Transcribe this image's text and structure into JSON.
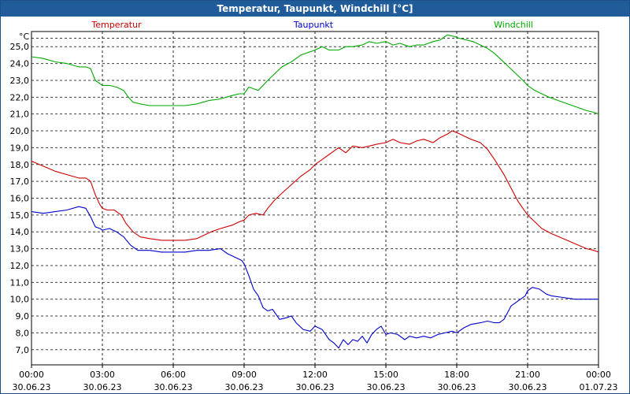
{
  "window": {
    "title": "Temperatur, Taupunkt, Windchill [°C]"
  },
  "chart_data": {
    "type": "line",
    "title": "Temperatur, Taupunkt, Windchill [°C]",
    "ylabel": "°C",
    "ylim": [
      6.1,
      25.9
    ],
    "yticks": [
      "7,0",
      "8,0",
      "9,0",
      "10,0",
      "11,0",
      "12,0",
      "13,0",
      "14,0",
      "15,0",
      "16,0",
      "17,0",
      "18,0",
      "19,0",
      "20,0",
      "21,0",
      "22,0",
      "23,0",
      "24,0",
      "25,0"
    ],
    "xlim": [
      0,
      24
    ],
    "xticks": [
      {
        "hour": 0,
        "time": "00:00",
        "date": "30.06.23"
      },
      {
        "hour": 3,
        "time": "03:00",
        "date": "30.06.23"
      },
      {
        "hour": 6,
        "time": "06:00",
        "date": "30.06.23"
      },
      {
        "hour": 9,
        "time": "09:00",
        "date": "30.06.23"
      },
      {
        "hour": 12,
        "time": "12:00",
        "date": "30.06.23"
      },
      {
        "hour": 15,
        "time": "15:00",
        "date": "30.06.23"
      },
      {
        "hour": 18,
        "time": "18:00",
        "date": "30.06.23"
      },
      {
        "hour": 21,
        "time": "21:00",
        "date": "30.06.23"
      },
      {
        "hour": 24,
        "time": "00:00",
        "date": "01.07.23"
      }
    ],
    "grid": true,
    "series": [
      {
        "name": "Temperatur",
        "color": "#cc0000",
        "x": [
          0,
          0.5,
          1,
          1.5,
          2,
          2.3,
          2.5,
          2.7,
          2.9,
          3,
          3.2,
          3.5,
          3.8,
          4,
          4.3,
          4.6,
          5,
          5.5,
          6,
          6.5,
          7,
          7.3,
          7.6,
          8,
          8.5,
          8.8,
          9,
          9.2,
          9.5,
          9.8,
          10,
          10.3,
          10.6,
          11,
          11.4,
          11.8,
          12,
          12.3,
          12.6,
          13,
          13.3,
          13.6,
          14,
          14.3,
          14.6,
          15,
          15.3,
          15.6,
          16,
          16.3,
          16.6,
          17,
          17.3,
          17.6,
          17.8,
          18,
          18.3,
          18.6,
          19,
          19.3,
          19.6,
          20,
          20.3,
          20.6,
          21,
          21.3,
          21.6,
          22,
          22.5,
          23,
          23.5,
          23.8,
          24
        ],
        "y": [
          18.2,
          17.9,
          17.6,
          17.4,
          17.2,
          17.2,
          17.0,
          16.2,
          15.6,
          15.4,
          15.3,
          15.3,
          15.0,
          14.5,
          14.0,
          13.7,
          13.6,
          13.5,
          13.5,
          13.5,
          13.6,
          13.8,
          14.0,
          14.2,
          14.4,
          14.6,
          14.7,
          15.0,
          15.1,
          15.0,
          15.4,
          15.9,
          16.3,
          16.8,
          17.3,
          17.7,
          18.0,
          18.3,
          18.6,
          19.0,
          18.7,
          19.1,
          19.0,
          19.1,
          19.2,
          19.3,
          19.5,
          19.3,
          19.2,
          19.4,
          19.5,
          19.3,
          19.6,
          19.8,
          20.0,
          19.9,
          19.7,
          19.5,
          19.3,
          18.9,
          18.3,
          17.4,
          16.6,
          15.8,
          15.0,
          14.6,
          14.2,
          13.9,
          13.6,
          13.3,
          13.0,
          12.9,
          12.8
        ]
      },
      {
        "name": "Taupunkt",
        "color": "#0000cc",
        "x": [
          0,
          0.5,
          1,
          1.5,
          2,
          2.3,
          2.5,
          2.7,
          2.9,
          3,
          3.3,
          3.6,
          3.9,
          4.2,
          4.5,
          5,
          5.5,
          6,
          6.5,
          7,
          7.5,
          8,
          8.3,
          8.6,
          8.9,
          9,
          9.2,
          9.4,
          9.6,
          9.8,
          10,
          10.2,
          10.5,
          10.8,
          11,
          11.2,
          11.5,
          11.8,
          12,
          12.3,
          12.6,
          12.8,
          13,
          13.2,
          13.4,
          13.6,
          13.8,
          14,
          14.2,
          14.4,
          14.6,
          14.8,
          15,
          15.2,
          15.5,
          15.8,
          16,
          16.3,
          16.6,
          16.9,
          17.2,
          17.5,
          17.8,
          18,
          18.3,
          18.6,
          19,
          19.3,
          19.6,
          19.8,
          20,
          20.3,
          20.6,
          20.9,
          21,
          21.2,
          21.5,
          21.8,
          22,
          22.5,
          23,
          23.5,
          24
        ],
        "y": [
          15.2,
          15.1,
          15.2,
          15.3,
          15.5,
          15.4,
          14.9,
          14.3,
          14.2,
          14.1,
          14.2,
          14.0,
          13.7,
          13.2,
          12.9,
          12.9,
          12.8,
          12.8,
          12.8,
          12.9,
          12.9,
          13.0,
          12.7,
          12.5,
          12.3,
          12.1,
          11.4,
          10.6,
          10.2,
          9.5,
          9.3,
          9.4,
          8.8,
          8.9,
          9.0,
          8.6,
          8.2,
          8.1,
          8.4,
          8.2,
          7.6,
          7.4,
          7.1,
          7.6,
          7.3,
          7.6,
          7.5,
          7.8,
          7.4,
          7.9,
          8.2,
          8.4,
          7.9,
          8.0,
          7.9,
          7.6,
          7.8,
          7.7,
          7.8,
          7.7,
          7.9,
          8.0,
          8.1,
          8.0,
          8.3,
          8.5,
          8.6,
          8.7,
          8.6,
          8.6,
          8.8,
          9.6,
          9.9,
          10.2,
          10.5,
          10.7,
          10.6,
          10.3,
          10.2,
          10.1,
          10.0,
          10.0,
          10.0
        ]
      },
      {
        "name": "Windchill",
        "color": "#00aa00",
        "x": [
          0,
          0.5,
          1,
          1.5,
          2,
          2.3,
          2.5,
          2.7,
          3,
          3.3,
          3.6,
          3.9,
          4.1,
          4.3,
          4.6,
          5,
          5.5,
          6,
          6.5,
          7,
          7.5,
          8,
          8.5,
          8.8,
          9,
          9.2,
          9.4,
          9.6,
          9.8,
          10,
          10.3,
          10.6,
          11,
          11.4,
          11.8,
          12,
          12.3,
          12.6,
          13,
          13.3,
          13.6,
          14,
          14.3,
          14.6,
          15,
          15.3,
          15.6,
          16,
          16.3,
          16.6,
          17,
          17.3,
          17.6,
          17.9,
          18.1,
          18.4,
          18.7,
          19,
          19.3,
          19.6,
          19.9,
          20.2,
          20.5,
          20.8,
          21,
          21.3,
          21.6,
          21.9,
          22.3,
          22.7,
          23.1,
          23.5,
          23.8,
          24
        ],
        "y": [
          24.4,
          24.3,
          24.1,
          24.0,
          23.8,
          23.8,
          23.7,
          23.0,
          22.7,
          22.7,
          22.6,
          22.4,
          22.0,
          21.7,
          21.6,
          21.5,
          21.5,
          21.5,
          21.5,
          21.6,
          21.8,
          21.9,
          22.1,
          22.2,
          22.2,
          22.6,
          22.5,
          22.4,
          22.7,
          23.0,
          23.4,
          23.8,
          24.1,
          24.5,
          24.7,
          24.8,
          25.0,
          24.8,
          24.8,
          25.0,
          25.0,
          25.1,
          25.3,
          25.2,
          25.3,
          25.1,
          25.2,
          25.0,
          25.1,
          25.1,
          25.3,
          25.4,
          25.7,
          25.6,
          25.5,
          25.4,
          25.3,
          25.1,
          24.9,
          24.6,
          24.2,
          23.8,
          23.4,
          23.0,
          22.7,
          22.4,
          22.2,
          22.0,
          21.8,
          21.6,
          21.4,
          21.2,
          21.1,
          21.0
        ]
      }
    ]
  }
}
